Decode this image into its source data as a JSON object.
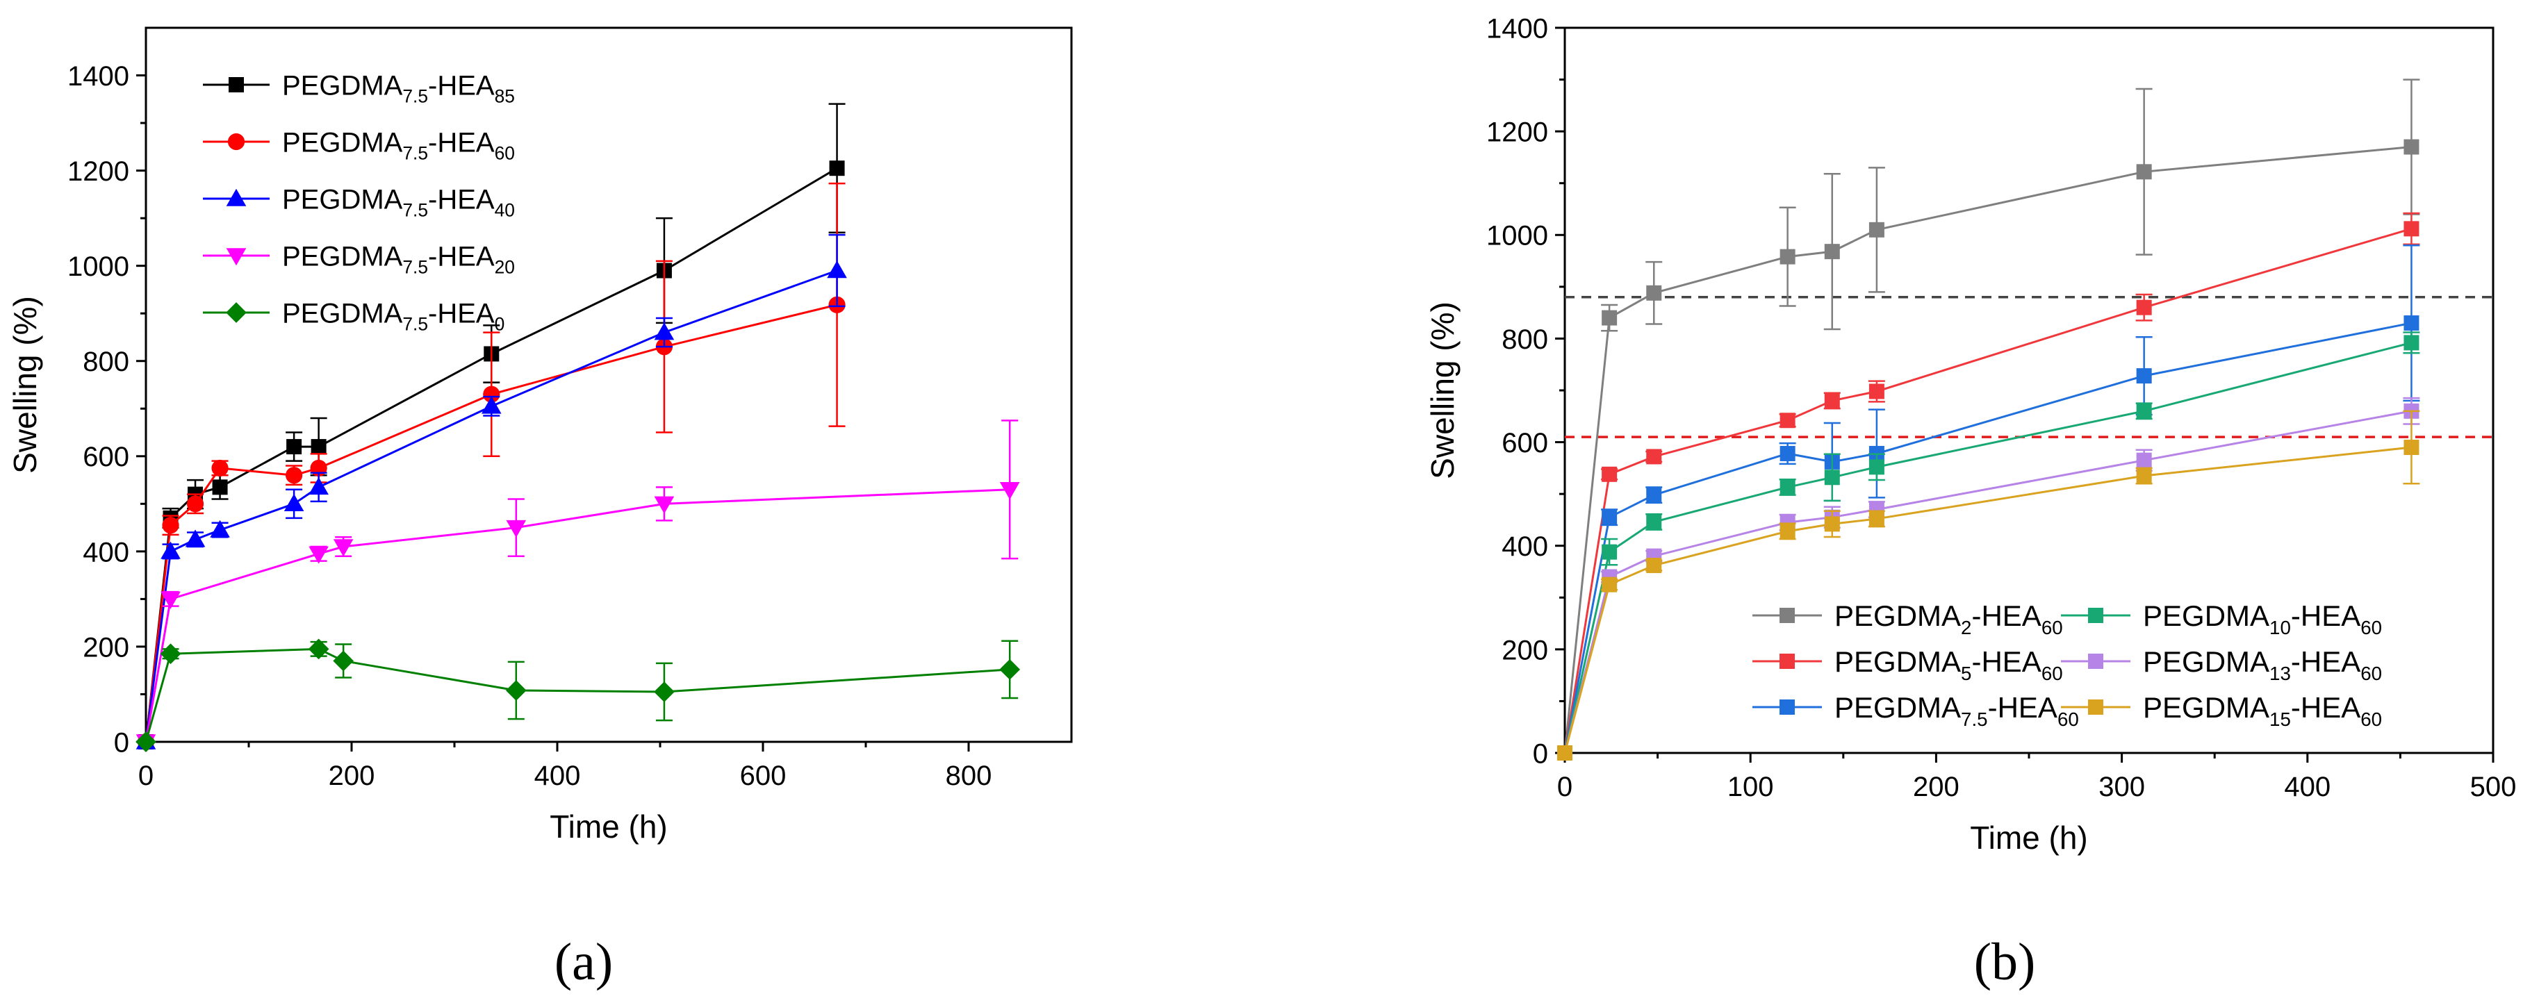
{
  "panel_labels": {
    "a": "(a)",
    "b": "(b)"
  },
  "colors": {
    "a": {
      "HEA85": "#000000",
      "HEA60": "#ff0000",
      "HEA40": "#0000ff",
      "HEA20": "#ff00ff",
      "HEA0": "#008000"
    },
    "b": {
      "P2": "#7f7f7f",
      "P5": "#f0383c",
      "P7_5": "#1f6fdc",
      "P10": "#18a874",
      "P13": "#b683e6",
      "P15": "#d9a21f"
    },
    "ref_black": "#444444",
    "ref_red": "#e01b1b"
  },
  "chart_data": [
    {
      "panel": "a",
      "type": "line",
      "xlabel": "Time (h)",
      "ylabel": "Swelling (%)",
      "xlim": [
        0,
        900
      ],
      "ylim": [
        0,
        1500
      ],
      "xticks": [
        0,
        200,
        400,
        600,
        800
      ],
      "yticks": [
        0,
        200,
        400,
        600,
        800,
        1000,
        1200,
        1400
      ],
      "grid": false,
      "legend_position": "top-left",
      "series": [
        {
          "key": "HEA85",
          "base": "PEGDMA",
          "sub": "7.5",
          "suffix": "-HEA",
          "sub2": "85",
          "marker": "square",
          "x": [
            0,
            24,
            48,
            72,
            144,
            168,
            336,
            504,
            672
          ],
          "y": [
            0,
            470,
            520,
            535,
            620,
            620,
            815,
            990,
            1205
          ],
          "err": [
            0,
            20,
            30,
            25,
            30,
            60,
            60,
            110,
            135
          ]
        },
        {
          "key": "HEA60",
          "base": "PEGDMA",
          "sub": "7.5",
          "suffix": "-HEA",
          "sub2": "60",
          "marker": "circle",
          "x": [
            0,
            24,
            48,
            72,
            144,
            168,
            336,
            504,
            672
          ],
          "y": [
            0,
            455,
            500,
            575,
            560,
            575,
            730,
            830,
            918
          ],
          "err": [
            0,
            20,
            20,
            15,
            20,
            30,
            130,
            180,
            255
          ]
        },
        {
          "key": "HEA40",
          "base": "PEGDMA",
          "sub": "7.5",
          "suffix": "-HEA",
          "sub2": "40",
          "marker": "triangle-up",
          "x": [
            0,
            24,
            48,
            72,
            144,
            168,
            336,
            504,
            672
          ],
          "y": [
            0,
            400,
            425,
            445,
            500,
            535,
            705,
            860,
            990
          ],
          "err": [
            0,
            15,
            15,
            15,
            30,
            30,
            20,
            30,
            75
          ]
        },
        {
          "key": "HEA20",
          "base": "PEGDMA",
          "sub": "7.5",
          "suffix": "-HEA",
          "sub2": "20",
          "marker": "triangle-down",
          "x": [
            0,
            24,
            168,
            192,
            360,
            504,
            840
          ],
          "y": [
            0,
            300,
            395,
            410,
            450,
            500,
            530
          ],
          "err": [
            0,
            15,
            15,
            20,
            60,
            35,
            145
          ]
        },
        {
          "key": "HEA0",
          "base": "PEGDMA",
          "sub": "7.5",
          "suffix": "-HEA",
          "sub2": "0",
          "marker": "diamond",
          "x": [
            0,
            24,
            168,
            192,
            360,
            504,
            840
          ],
          "y": [
            0,
            185,
            195,
            170,
            108,
            105,
            152
          ],
          "err": [
            0,
            10,
            15,
            35,
            60,
            60,
            60
          ]
        }
      ]
    },
    {
      "panel": "b",
      "type": "line",
      "xlabel": "Time (h)",
      "ylabel": "Swelling (%)",
      "xlim": [
        0,
        500
      ],
      "ylim": [
        0,
        1400
      ],
      "xticks": [
        0,
        100,
        200,
        300,
        400,
        500
      ],
      "yticks": [
        0,
        200,
        400,
        600,
        800,
        1000,
        1200,
        1400
      ],
      "grid": false,
      "legend_position": "bottom-right",
      "reference_lines": [
        {
          "y": 880,
          "color_key": "ref_black"
        },
        {
          "y": 610,
          "color_key": "ref_red"
        }
      ],
      "series": [
        {
          "key": "P2",
          "base": "PEGDMA",
          "sub": "2",
          "suffix": "-HEA",
          "sub2": "60",
          "marker": "square",
          "x": [
            0,
            24,
            48,
            120,
            144,
            168,
            312,
            456
          ],
          "y": [
            0,
            840,
            888,
            958,
            968,
            1010,
            1122,
            1170
          ],
          "err": [
            0,
            25,
            60,
            95,
            150,
            120,
            160,
            130
          ]
        },
        {
          "key": "P5",
          "base": "PEGDMA",
          "sub": "5",
          "suffix": "-HEA",
          "sub2": "60",
          "marker": "square",
          "x": [
            0,
            24,
            48,
            120,
            144,
            168,
            312,
            456
          ],
          "y": [
            0,
            538,
            572,
            642,
            680,
            698,
            860,
            1012
          ],
          "err": [
            0,
            10,
            10,
            12,
            15,
            20,
            25,
            30
          ]
        },
        {
          "key": "P7_5",
          "base": "PEGDMA",
          "sub": "7.5",
          "suffix": "-HEA",
          "sub2": "60",
          "marker": "square",
          "x": [
            0,
            24,
            48,
            120,
            144,
            168,
            312,
            456
          ],
          "y": [
            0,
            455,
            498,
            578,
            562,
            578,
            728,
            830
          ],
          "err": [
            0,
            15,
            15,
            20,
            75,
            85,
            75,
            150
          ]
        },
        {
          "key": "P10",
          "base": "PEGDMA",
          "sub": "10",
          "suffix": "-HEA",
          "sub2": "60",
          "marker": "square",
          "x": [
            0,
            24,
            48,
            120,
            144,
            168,
            312,
            456
          ],
          "y": [
            0,
            388,
            446,
            513,
            532,
            552,
            660,
            792
          ],
          "err": [
            0,
            25,
            15,
            15,
            45,
            25,
            15,
            20
          ]
        },
        {
          "key": "P13",
          "base": "PEGDMA",
          "sub": "13",
          "suffix": "-HEA",
          "sub2": "60",
          "marker": "square",
          "x": [
            0,
            24,
            48,
            120,
            144,
            168,
            312,
            456
          ],
          "y": [
            0,
            340,
            380,
            445,
            455,
            470,
            565,
            660
          ],
          "err": [
            0,
            10,
            10,
            15,
            20,
            15,
            20,
            25
          ]
        },
        {
          "key": "P15",
          "base": "PEGDMA",
          "sub": "15",
          "suffix": "-HEA",
          "sub2": "60",
          "marker": "square",
          "x": [
            0,
            24,
            48,
            120,
            144,
            168,
            312,
            456
          ],
          "y": [
            0,
            325,
            362,
            428,
            442,
            452,
            535,
            590
          ],
          "err": [
            0,
            10,
            10,
            15,
            25,
            15,
            15,
            70
          ]
        }
      ]
    }
  ]
}
